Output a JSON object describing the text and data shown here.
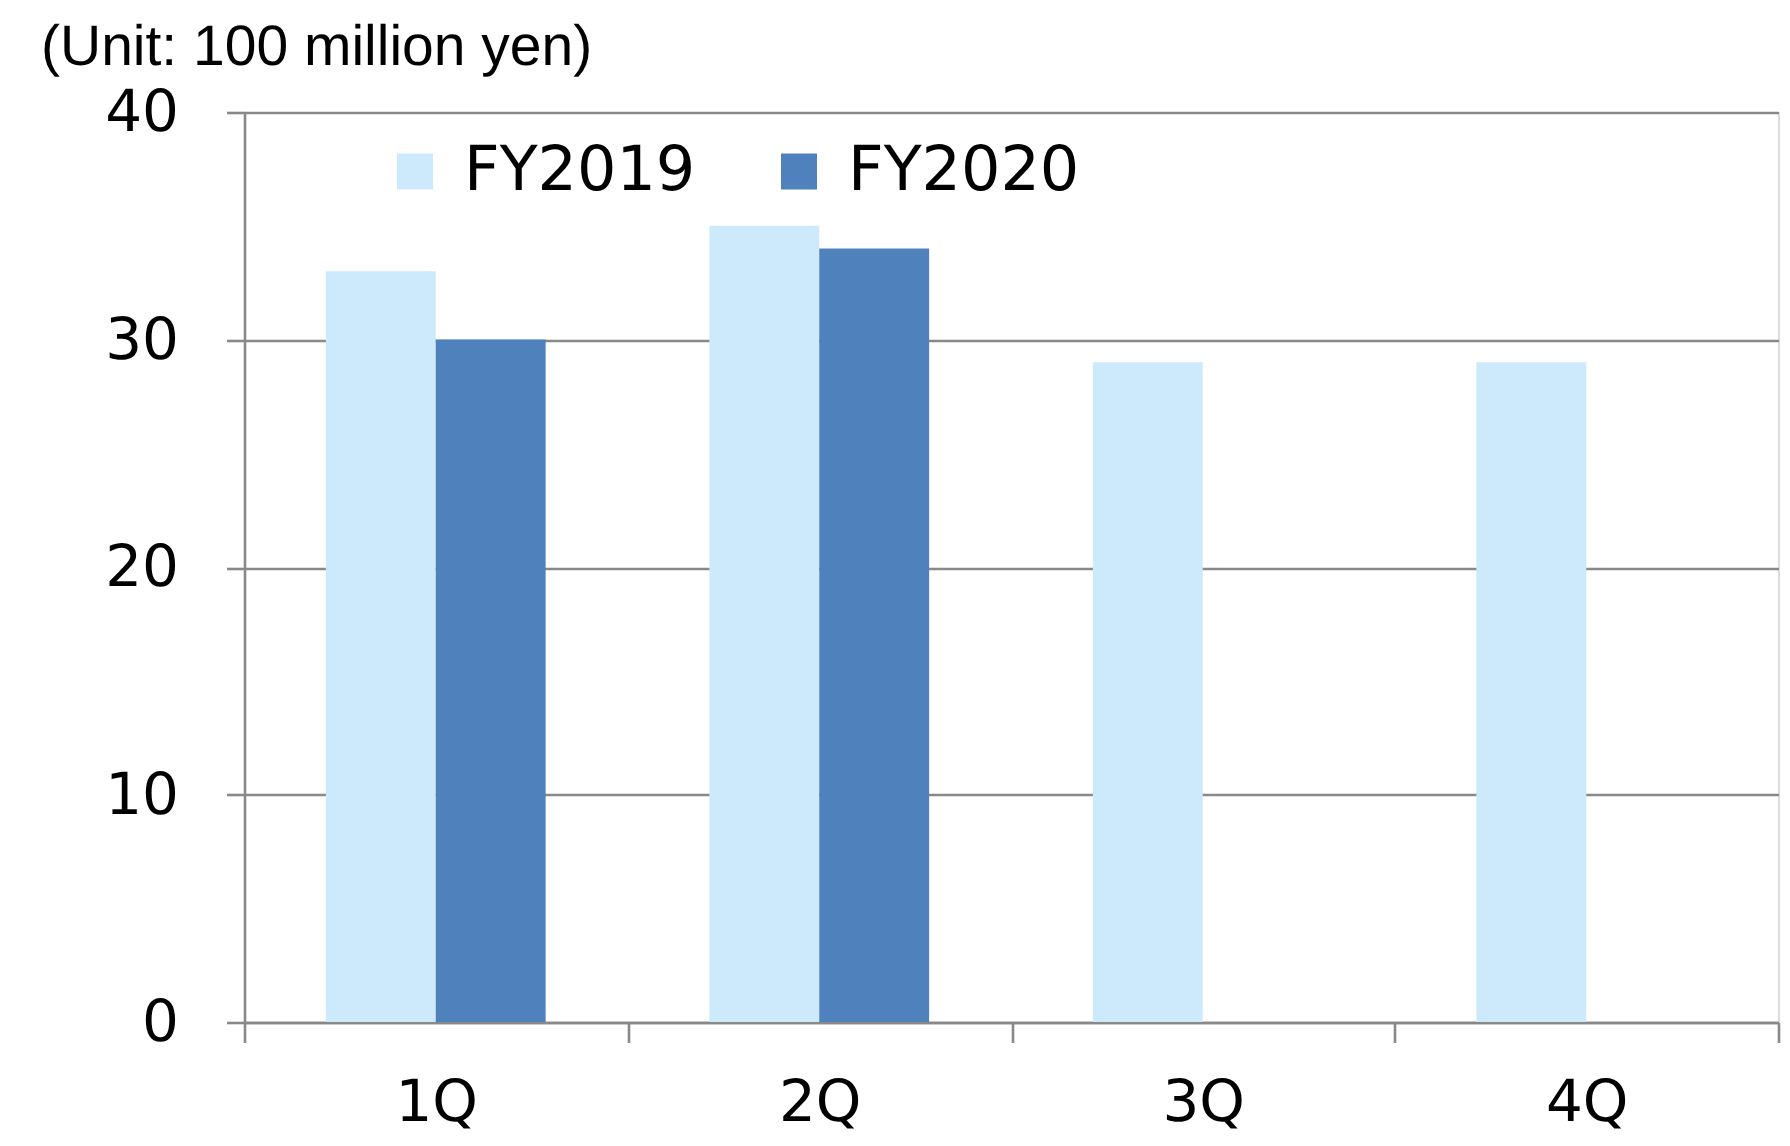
{
  "chart_data": {
    "type": "bar",
    "ylabel": "(Unit: 100 million yen)",
    "categories": [
      "1Q",
      "2Q",
      "3Q",
      "4Q"
    ],
    "series": [
      {
        "name": "FY2019",
        "color": "#cceafc",
        "values": [
          33,
          35,
          29,
          29
        ]
      },
      {
        "name": "FY2020",
        "color": "#4f81bd",
        "values": [
          30,
          34,
          null,
          null
        ]
      }
    ],
    "ylim": [
      0,
      40
    ],
    "yticks": [
      0,
      10,
      20,
      30,
      40
    ],
    "grid": "y",
    "legend": "top"
  }
}
